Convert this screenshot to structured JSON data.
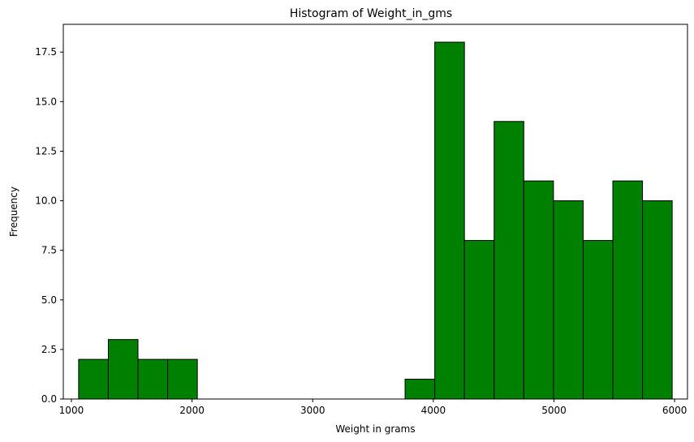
{
  "chart_data": {
    "type": "bar",
    "title": "Histogram of Weight_in_gms",
    "xlabel": "Weight in grams",
    "ylabel": "Frequency",
    "bins": [
      {
        "start": 1060,
        "end": 1306,
        "count": 2
      },
      {
        "start": 1306,
        "end": 1552,
        "count": 3
      },
      {
        "start": 1552,
        "end": 1798,
        "count": 2
      },
      {
        "start": 1798,
        "end": 2044,
        "count": 2
      },
      {
        "start": 2044,
        "end": 2290,
        "count": 0
      },
      {
        "start": 2290,
        "end": 2536,
        "count": 0
      },
      {
        "start": 2536,
        "end": 2782,
        "count": 0
      },
      {
        "start": 2782,
        "end": 3028,
        "count": 0
      },
      {
        "start": 3028,
        "end": 3274,
        "count": 0
      },
      {
        "start": 3274,
        "end": 3520,
        "count": 0
      },
      {
        "start": 3520,
        "end": 3766,
        "count": 0
      },
      {
        "start": 3766,
        "end": 4012,
        "count": 1
      },
      {
        "start": 4012,
        "end": 4258,
        "count": 18
      },
      {
        "start": 4258,
        "end": 4504,
        "count": 8
      },
      {
        "start": 4504,
        "end": 4750,
        "count": 14
      },
      {
        "start": 4750,
        "end": 4996,
        "count": 11
      },
      {
        "start": 4996,
        "end": 5242,
        "count": 10
      },
      {
        "start": 5242,
        "end": 5488,
        "count": 8
      },
      {
        "start": 5488,
        "end": 5734,
        "count": 11
      },
      {
        "start": 5734,
        "end": 5980,
        "count": 10
      }
    ],
    "xlim": [
      933,
      6107
    ],
    "ylim": [
      0,
      18.9
    ],
    "xticks": [
      1000,
      2000,
      3000,
      4000,
      5000,
      6000
    ],
    "yticks": [
      0.0,
      2.5,
      5.0,
      7.5,
      10.0,
      12.5,
      15.0,
      17.5
    ],
    "ytick_labels": [
      "0.0",
      "2.5",
      "5.0",
      "7.5",
      "10.0",
      "12.5",
      "15.0",
      "17.5"
    ],
    "bar_color": "#008000",
    "edge_color": "#000000",
    "grid": false
  }
}
